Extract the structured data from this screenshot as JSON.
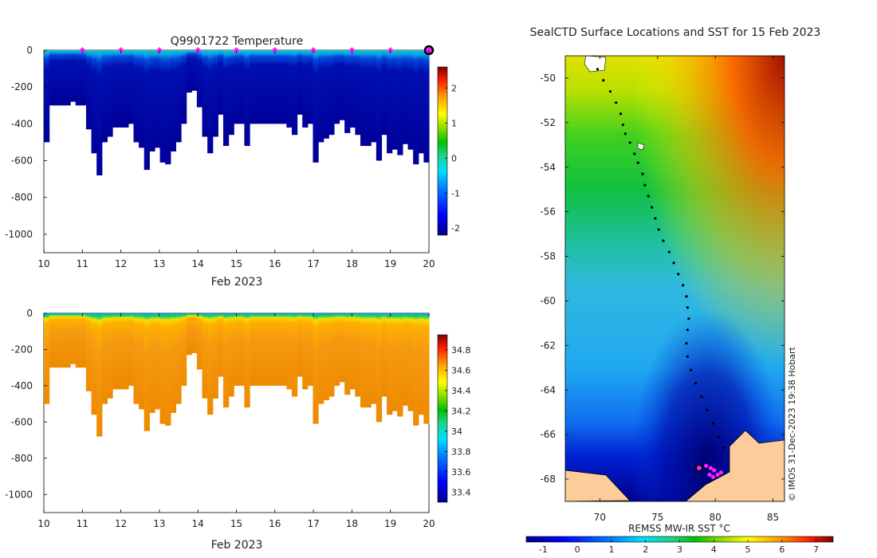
{
  "chart_data": [
    {
      "type": "heatmap",
      "id": "temperature_section",
      "title": "Q9901722  Temperature",
      "xlabel": "Feb 2023",
      "x_ticks": [
        "10",
        "11",
        "12",
        "13",
        "14",
        "15",
        "16",
        "17",
        "18",
        "19",
        "20"
      ],
      "xlim": [
        10,
        20
      ],
      "y_ticks": [
        "0",
        "-200",
        "-400",
        "-600",
        "-800",
        "-1000"
      ],
      "ylim": [
        -1100,
        0
      ],
      "colorbar_ticks": [
        "2",
        "1",
        "0",
        "-1",
        "-2"
      ],
      "colorbar_range": [
        -2.2,
        2.6
      ],
      "profile_depths": [
        500,
        300,
        300,
        300,
        300,
        280,
        300,
        300,
        430,
        560,
        680,
        500,
        470,
        420,
        420,
        420,
        400,
        500,
        530,
        650,
        550,
        530,
        610,
        620,
        550,
        500,
        400,
        230,
        220,
        310,
        470,
        560,
        470,
        350,
        520,
        460,
        400,
        400,
        520,
        400,
        400,
        400,
        400,
        400,
        400,
        400,
        420,
        460,
        350,
        420,
        400,
        610,
        500,
        480,
        460,
        400,
        380,
        450,
        420,
        460,
        520,
        520,
        500,
        600,
        460,
        560,
        540,
        570,
        510,
        540,
        620,
        560,
        610
      ],
      "surface_markers_days": [
        11,
        12,
        13,
        14,
        15,
        16,
        17,
        18,
        19
      ],
      "current_marker_day": 20
    },
    {
      "type": "heatmap",
      "id": "salinity_section",
      "xlabel": "Feb 2023",
      "x_ticks": [
        "10",
        "11",
        "12",
        "13",
        "14",
        "15",
        "16",
        "17",
        "18",
        "19",
        "20"
      ],
      "xlim": [
        10,
        20
      ],
      "y_ticks": [
        "0",
        "-200",
        "-400",
        "-600",
        "-800",
        "-1000"
      ],
      "ylim": [
        -1100,
        0
      ],
      "colorbar_ticks": [
        "34.8",
        "34.6",
        "34.4",
        "34.2",
        "34",
        "33.8",
        "33.6",
        "33.4"
      ],
      "colorbar_range": [
        33.3,
        34.95
      ]
    },
    {
      "type": "heatmap",
      "id": "sst_map",
      "title": "SealCTD Surface Locations and SST for 15 Feb 2023",
      "x_ticks": [
        "70",
        "75",
        "80",
        "85"
      ],
      "xlim": [
        67,
        86
      ],
      "y_ticks": [
        "-50",
        "-52",
        "-54",
        "-56",
        "-58",
        "-60",
        "-62",
        "-64",
        "-66",
        "-68"
      ],
      "ylim": [
        -69,
        -49
      ],
      "colorbar_label": "REMSS MW-IR SST °C",
      "colorbar_ticks": [
        "-1",
        "0",
        "1",
        "2",
        "3",
        "4",
        "5",
        "6",
        "7"
      ],
      "colorbar_range": [
        -1.5,
        7.5
      ],
      "credit": "© IMOS 31-Dec-2023 19:38 Hobart",
      "track_lon": [
        69.8,
        70.3,
        70.9,
        71.4,
        71.8,
        72.0,
        72.2,
        72.6,
        73.0,
        73.3,
        73.7,
        73.9,
        74.2,
        74.5,
        74.8,
        75.1,
        75.5,
        76.0,
        76.4,
        76.8,
        77.2,
        77.5,
        77.6,
        77.7,
        77.6,
        77.5,
        77.6,
        77.9,
        78.3,
        78.8,
        79.3,
        79.8,
        80.3,
        80.7
      ],
      "track_lat": [
        -49.6,
        -50.1,
        -50.6,
        -51.1,
        -51.6,
        -52.1,
        -52.5,
        -52.9,
        -53.4,
        -53.8,
        -54.3,
        -54.8,
        -55.3,
        -55.8,
        -56.3,
        -56.8,
        -57.3,
        -57.8,
        -58.3,
        -58.8,
        -59.3,
        -59.8,
        -60.3,
        -60.8,
        -61.3,
        -61.9,
        -62.5,
        -63.1,
        -63.7,
        -64.3,
        -64.9,
        -65.5,
        -66.1,
        -66.6
      ],
      "recent_lon": [
        79.2,
        79.6,
        79.9,
        80.2,
        80.5,
        79.5,
        79.8
      ],
      "recent_lat": [
        -67.4,
        -67.5,
        -67.6,
        -67.8,
        -67.7,
        -67.8,
        -67.9
      ],
      "current_lon": 78.6,
      "current_lat": -67.5
    }
  ]
}
